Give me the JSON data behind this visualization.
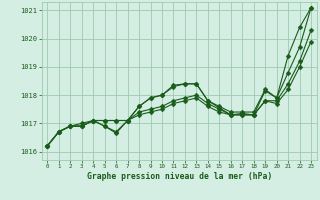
{
  "xlabel": "Graphe pression niveau de la mer (hPa)",
  "ylim": [
    1015.7,
    1021.3
  ],
  "xlim": [
    -0.5,
    23.5
  ],
  "yticks": [
    1016,
    1017,
    1018,
    1019,
    1020,
    1021
  ],
  "xticks": [
    0,
    1,
    2,
    3,
    4,
    5,
    6,
    7,
    8,
    9,
    10,
    11,
    12,
    13,
    14,
    15,
    16,
    17,
    18,
    19,
    20,
    21,
    22,
    23
  ],
  "bg_color": "#d4eee4",
  "grid_color": "#9ec9b0",
  "line_color": "#1a5c1a",
  "marker_size": 2.5,
  "series": [
    [
      1016.2,
      1016.7,
      1016.9,
      1016.9,
      1017.1,
      1016.9,
      1016.7,
      1017.1,
      1017.6,
      1017.9,
      1018.0,
      1018.3,
      1018.4,
      1018.4,
      1017.8,
      1017.55,
      1017.3,
      1017.35,
      1017.3,
      1018.15,
      1017.9,
      1019.4,
      1020.4,
      1021.1
    ],
    [
      1016.2,
      1016.7,
      1016.9,
      1016.9,
      1017.1,
      1017.1,
      1017.1,
      1017.1,
      1017.4,
      1017.5,
      1017.6,
      1017.8,
      1017.9,
      1018.0,
      1017.7,
      1017.5,
      1017.3,
      1017.3,
      1017.3,
      1017.8,
      1017.8,
      1018.4,
      1019.2,
      1020.3
    ],
    [
      1016.2,
      1016.7,
      1016.9,
      1016.9,
      1017.1,
      1017.1,
      1017.1,
      1017.1,
      1017.3,
      1017.4,
      1017.5,
      1017.7,
      1017.8,
      1017.9,
      1017.6,
      1017.4,
      1017.3,
      1017.3,
      1017.3,
      1017.8,
      1017.7,
      1018.2,
      1019.0,
      1019.9
    ],
    [
      1016.2,
      1016.7,
      1016.9,
      1017.0,
      1017.1,
      1016.9,
      1016.65,
      1017.1,
      1017.6,
      1017.9,
      1018.0,
      1018.35,
      1018.4,
      1018.4,
      1017.8,
      1017.6,
      1017.4,
      1017.4,
      1017.4,
      1018.2,
      1017.9,
      1018.8,
      1019.7,
      1021.1
    ]
  ]
}
